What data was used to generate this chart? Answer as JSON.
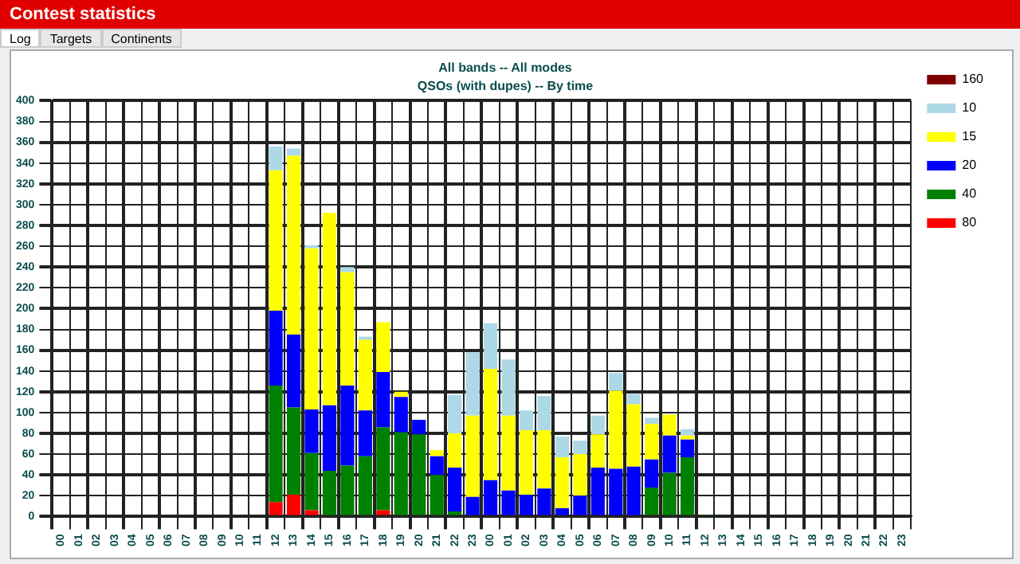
{
  "chart_data": {
    "type": "bar",
    "title": "All bands -- All modes",
    "subtitle": "QSOs (with dupes) -- By time",
    "annotations": [
      "Contest statistics",
      "Log",
      "Targets",
      "Continents"
    ],
    "categories": [
      "00",
      "01",
      "02",
      "03",
      "04",
      "05",
      "06",
      "07",
      "08",
      "09",
      "10",
      "11",
      "12",
      "13",
      "14",
      "15",
      "16",
      "17",
      "18",
      "19",
      "20",
      "21",
      "22",
      "23",
      "00",
      "01",
      "02",
      "03",
      "04",
      "05",
      "06",
      "07",
      "08",
      "09",
      "10",
      "11",
      "12",
      "13",
      "14",
      "15",
      "16",
      "17",
      "18",
      "19",
      "20",
      "21",
      "22",
      "23"
    ],
    "stacked": true,
    "ylim": [
      0,
      400
    ],
    "yticks": [
      0,
      20,
      40,
      60,
      80,
      100,
      120,
      140,
      160,
      180,
      200,
      220,
      240,
      260,
      280,
      300,
      320,
      340,
      360,
      380,
      400
    ],
    "grid": true,
    "legend": "top right",
    "series": [
      {
        "name": "80",
        "color": "#ff0000",
        "values": [
          0,
          0,
          0,
          0,
          0,
          0,
          0,
          0,
          0,
          0,
          0,
          0,
          14,
          21,
          6,
          0,
          0,
          0,
          6,
          0,
          0,
          0,
          0,
          0,
          0,
          0,
          0,
          0,
          0,
          0,
          0,
          0,
          0,
          0,
          0,
          0,
          0,
          0,
          0,
          0,
          0,
          0,
          0,
          0,
          0,
          0,
          0,
          0
        ]
      },
      {
        "name": "40",
        "color": "#008000",
        "values": [
          0,
          0,
          0,
          0,
          0,
          0,
          0,
          0,
          0,
          0,
          0,
          0,
          112,
          84,
          55,
          44,
          49,
          58,
          80,
          81,
          79,
          40,
          5,
          0,
          0,
          0,
          0,
          0,
          0,
          0,
          0,
          0,
          0,
          28,
          42,
          57,
          1,
          0,
          0,
          0,
          0,
          0,
          0,
          0,
          0,
          0,
          0,
          0
        ]
      },
      {
        "name": "20",
        "color": "#0000ff",
        "values": [
          0,
          0,
          0,
          0,
          0,
          0,
          0,
          0,
          0,
          0,
          0,
          0,
          72,
          70,
          42,
          63,
          77,
          44,
          53,
          34,
          14,
          18,
          42,
          19,
          35,
          25,
          21,
          27,
          8,
          20,
          47,
          46,
          48,
          27,
          36,
          17,
          0,
          0,
          0,
          0,
          0,
          0,
          0,
          0,
          0,
          0,
          0,
          0
        ]
      },
      {
        "name": "15",
        "color": "#ffff00",
        "values": [
          0,
          0,
          0,
          0,
          0,
          0,
          0,
          0,
          0,
          0,
          0,
          0,
          135,
          172,
          155,
          185,
          109,
          68,
          48,
          5,
          0,
          6,
          33,
          78,
          107,
          72,
          62,
          56,
          49,
          40,
          32,
          75,
          60,
          34,
          20,
          4,
          0,
          0,
          0,
          0,
          0,
          0,
          0,
          0,
          0,
          0,
          0,
          0
        ]
      },
      {
        "name": "10",
        "color": "#add8e6",
        "values": [
          0,
          0,
          0,
          0,
          0,
          0,
          0,
          0,
          0,
          0,
          0,
          0,
          23,
          7,
          3,
          0,
          5,
          3,
          0,
          0,
          0,
          0,
          37,
          61,
          44,
          54,
          19,
          33,
          20,
          13,
          18,
          17,
          10,
          6,
          0,
          6,
          0,
          0,
          0,
          0,
          0,
          0,
          0,
          0,
          0,
          0,
          0,
          0
        ]
      },
      {
        "name": "160",
        "color": "#800000",
        "values": [
          0,
          0,
          0,
          0,
          0,
          0,
          0,
          0,
          0,
          0,
          0,
          0,
          0,
          0,
          0,
          0,
          0,
          0,
          0,
          0,
          0,
          0,
          0,
          0,
          0,
          0,
          0,
          0,
          0,
          0,
          0,
          0,
          0,
          0,
          0,
          0,
          0,
          0,
          0,
          0,
          0,
          0,
          0,
          0,
          0,
          0,
          0,
          0
        ]
      }
    ]
  }
}
